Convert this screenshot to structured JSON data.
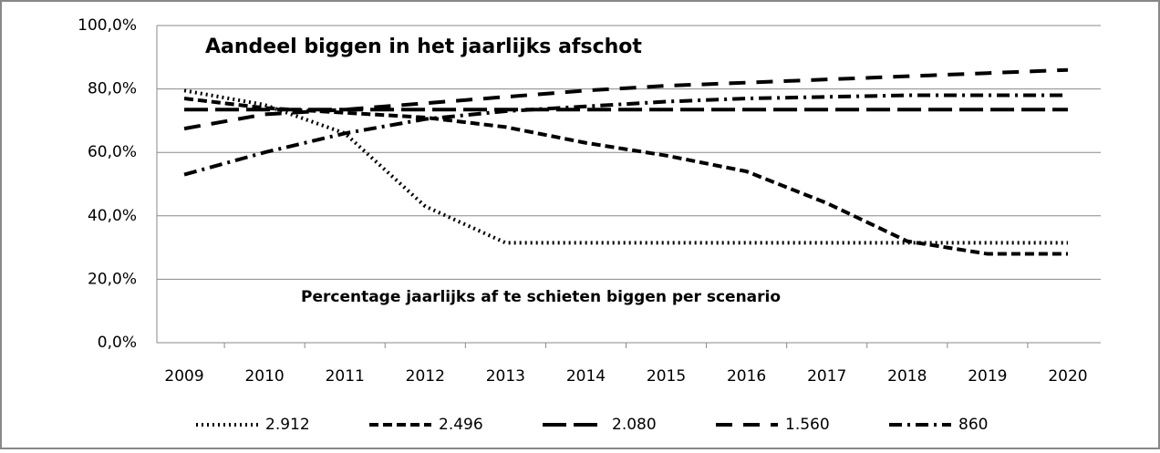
{
  "chart_data": {
    "type": "line",
    "title": "Aandeel biggen in het jaarlijks afschot",
    "annotation": "Percentage jaarlijks af te schieten biggen per scenario",
    "categories": [
      "2009",
      "2010",
      "2011",
      "2012",
      "2013",
      "2014",
      "2015",
      "2016",
      "2017",
      "2018",
      "2019",
      "2020"
    ],
    "series": [
      {
        "name": "2.912",
        "color": "#000000",
        "values": [
          79.5,
          75,
          66,
          43,
          31.5,
          31.5,
          31.5,
          31.5,
          31.5,
          31.5,
          31.5,
          31.5
        ]
      },
      {
        "name": "2.496",
        "color": "#000000",
        "values": [
          77,
          74,
          72.5,
          71,
          68,
          63,
          59,
          54,
          44,
          32,
          28,
          28
        ]
      },
      {
        "name": "2.080",
        "color": "#000000",
        "values": [
          73.5,
          73.5,
          73.5,
          73.5,
          73.5,
          73.5,
          73.5,
          73.5,
          73.5,
          73.5,
          73.5,
          73.5
        ]
      },
      {
        "name": "1.560",
        "color": "#000000",
        "values": [
          67.5,
          72,
          73.5,
          75.5,
          77.5,
          79.5,
          81,
          82,
          83,
          84,
          85,
          86
        ]
      },
      {
        "name": "860",
        "color": "#000000",
        "values": [
          53,
          60,
          66,
          70.5,
          73,
          74.5,
          76,
          77,
          77.5,
          78,
          78,
          78
        ]
      }
    ],
    "ylim": [
      0,
      100
    ],
    "yticks": [
      {
        "value": 0,
        "label": "0,0%"
      },
      {
        "value": 20,
        "label": "20,0%"
      },
      {
        "value": 40,
        "label": "40,0%"
      },
      {
        "value": 60,
        "label": "60,0%"
      },
      {
        "value": 80,
        "label": "80,0%"
      },
      {
        "value": 100,
        "label": "100,0%"
      }
    ],
    "grid": true,
    "legend": "bottom"
  }
}
